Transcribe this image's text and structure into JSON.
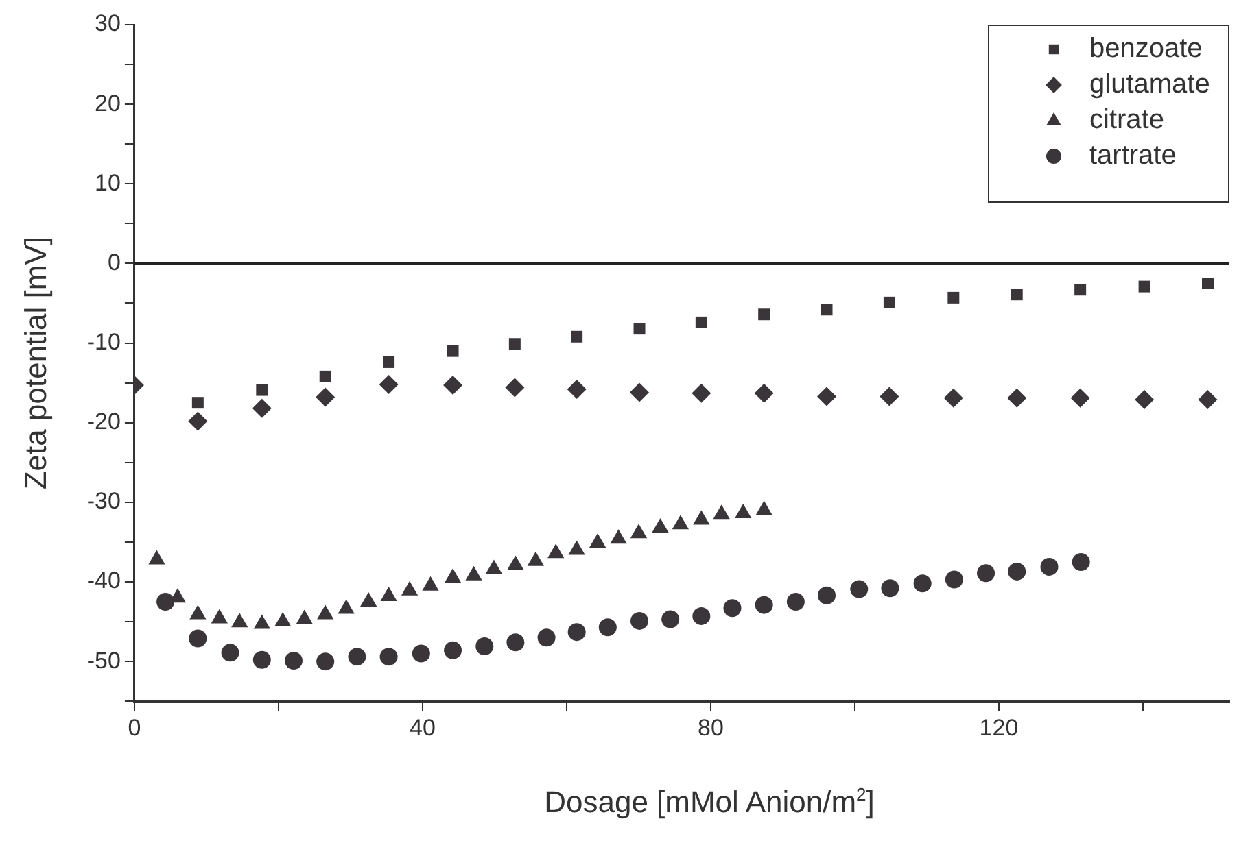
{
  "chart_data": {
    "type": "scatter",
    "xlabel": "Dosage [mMol Anion/m$^{2}$]",
    "ylabel": "Zeta potential [mV]",
    "xlim": [
      0,
      152
    ],
    "ylim": [
      -55,
      30
    ],
    "xticks": [
      0,
      {
        "value": 20,
        "label": null
      },
      40,
      {
        "value": 60,
        "label": null
      },
      80,
      {
        "value": 100,
        "label": null
      },
      120,
      {
        "value": 140,
        "label": null
      }
    ],
    "yticks": [
      {
        "value": -55,
        "label": null
      },
      -50,
      {
        "value": -45,
        "label": null
      },
      -40,
      {
        "value": -35,
        "label": null
      },
      -30,
      {
        "value": -25,
        "label": null
      },
      -20,
      {
        "value": -15,
        "label": null
      },
      -10,
      {
        "value": -5,
        "label": null
      },
      0,
      {
        "value": 5,
        "label": null
      },
      10,
      {
        "value": 15,
        "label": null
      },
      20,
      {
        "value": 25,
        "label": null
      },
      30
    ],
    "grid": false,
    "legend": "top right",
    "ref_lines": [
      {
        "axis": "y",
        "value": 0
      }
    ],
    "series": [
      {
        "name": "benzoate",
        "color": "#3a3538",
        "marker": "square",
        "x": [
          8.8,
          17.7,
          26.5,
          35.3,
          44.2,
          52.8,
          61.4,
          70.1,
          78.7,
          87.4,
          96.1,
          104.8,
          113.7,
          122.5,
          131.3,
          140.2,
          149
        ],
        "values": [
          -17.5,
          -15.9,
          -14.2,
          -12.4,
          -11,
          -10.1,
          -9.2,
          -8.2,
          -7.4,
          -6.4,
          -5.8,
          -4.9,
          -4.3,
          -3.9,
          -3.3,
          -2.9,
          -2.5
        ]
      },
      {
        "name": "glutamate",
        "color": "#3a3538",
        "marker": "diamond",
        "x": [
          0,
          8.8,
          17.7,
          26.5,
          35.3,
          44.2,
          52.8,
          61.4,
          70.1,
          78.7,
          87.4,
          96.1,
          104.8,
          113.7,
          122.5,
          131.3,
          140.2,
          149
        ],
        "values": [
          -15.3,
          -19.8,
          -18.2,
          -16.8,
          -15.2,
          -15.3,
          -15.6,
          -15.8,
          -16.2,
          -16.3,
          -16.3,
          -16.7,
          -16.7,
          -16.9,
          -16.9,
          -16.9,
          -17.1,
          -17.1
        ]
      },
      {
        "name": "citrate",
        "color": "#3a3538",
        "marker": "triangle",
        "x": [
          3.1,
          6,
          8.8,
          11.8,
          14.6,
          17.7,
          20.6,
          23.6,
          26.5,
          29.4,
          32.5,
          35.3,
          38.2,
          41.1,
          44.2,
          47.1,
          49.9,
          52.9,
          55.7,
          58.5,
          61.4,
          64.3,
          67.2,
          70,
          73,
          75.8,
          78.7,
          81.5,
          84.5,
          87.4
        ],
        "values": [
          -37.2,
          -42,
          -44.1,
          -44.6,
          -45.1,
          -45.3,
          -45,
          -44.7,
          -44.1,
          -43.4,
          -42.5,
          -41.8,
          -41.1,
          -40.5,
          -39.5,
          -39.2,
          -38.4,
          -37.9,
          -37.4,
          -36.4,
          -36,
          -35.1,
          -34.6,
          -33.9,
          -33.2,
          -32.8,
          -32.2,
          -31.5,
          -31.4,
          -31
        ]
      },
      {
        "name": "tartrate",
        "color": "#3a3538",
        "marker": "circle",
        "x": [
          4.3,
          8.8,
          13.3,
          17.7,
          22.1,
          26.5,
          30.9,
          35.3,
          39.8,
          44.2,
          48.6,
          52.9,
          57.2,
          61.4,
          65.7,
          70.1,
          74.4,
          78.7,
          83,
          87.4,
          91.8,
          96.1,
          100.6,
          104.9,
          109.4,
          113.8,
          118.2,
          122.5,
          127,
          131.4
        ],
        "values": [
          -42.5,
          -47.1,
          -48.9,
          -49.8,
          -49.9,
          -50,
          -49.4,
          -49.4,
          -49,
          -48.6,
          -48.1,
          -47.6,
          -47,
          -46.3,
          -45.7,
          -44.9,
          -44.7,
          -44.3,
          -43.3,
          -42.9,
          -42.5,
          -41.7,
          -40.9,
          -40.8,
          -40.2,
          -39.7,
          -38.9,
          -38.7,
          -38.1,
          -37.5
        ]
      }
    ]
  }
}
